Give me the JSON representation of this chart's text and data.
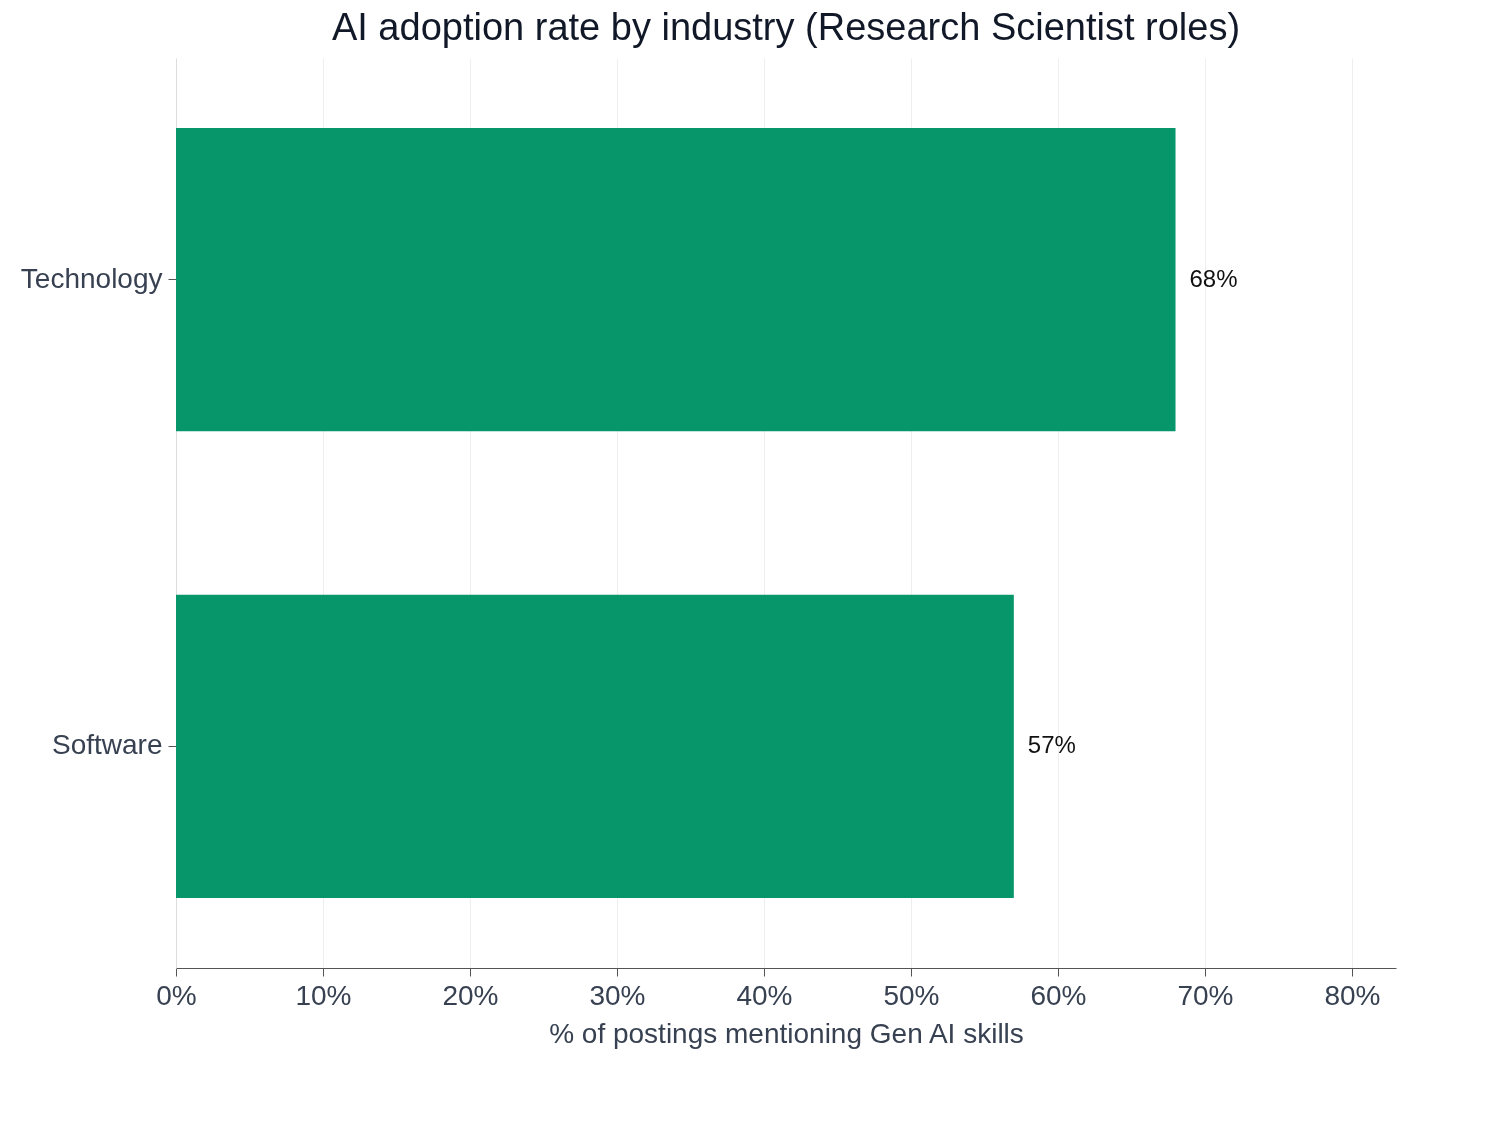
{
  "chart_data": {
    "type": "bar",
    "orientation": "horizontal",
    "title": "AI adoption rate by industry (Research Scientist roles)",
    "xlabel": "% of postings mentioning Gen AI skills",
    "categories": [
      "Technology",
      "Software"
    ],
    "values": [
      68,
      57
    ],
    "color": "#079669",
    "value_labels": [
      "68%",
      "57%"
    ],
    "xlim": [
      0,
      83
    ],
    "xticks": [
      {
        "value": 0,
        "label": "0%"
      },
      {
        "value": 10,
        "label": "10%"
      },
      {
        "value": 20,
        "label": "20%"
      },
      {
        "value": 30,
        "label": "30%"
      },
      {
        "value": 40,
        "label": "40%"
      },
      {
        "value": 50,
        "label": "50%"
      },
      {
        "value": 60,
        "label": "60%"
      },
      {
        "value": 70,
        "label": "70%"
      },
      {
        "value": 80,
        "label": "80%"
      }
    ],
    "grid": "x"
  }
}
